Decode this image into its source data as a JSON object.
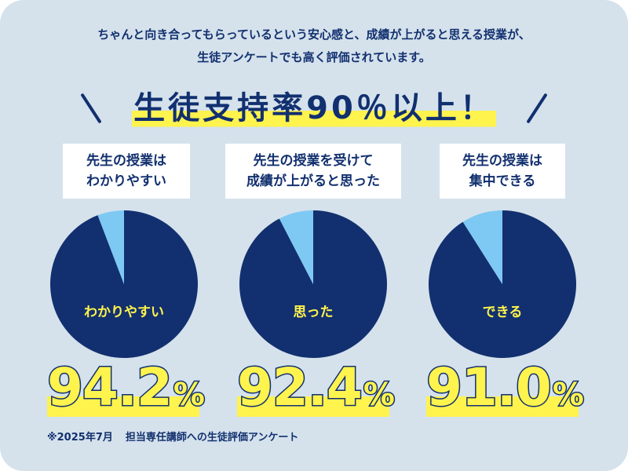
{
  "intro": {
    "line1": "ちゃんと向き合ってもらっているという安心感と、成績が上がると思える授業が、",
    "line2": "生徒アンケートでも高く評価されています。"
  },
  "headline": "生徒支持率90％以上！",
  "colors": {
    "background": "#d5e2ec",
    "navy": "#12306f",
    "light_blue": "#7ec9f3",
    "yellow": "#fff34d"
  },
  "chart_data": [
    {
      "type": "pie",
      "title": "先生の授業は\nわかりやすい",
      "slices": [
        {
          "label": "わかりやすい",
          "value": 94.2,
          "color": "#12306f"
        },
        {
          "label": "",
          "value": 5.8,
          "color": "#7ec9f3"
        }
      ],
      "center_label": "わかりやすい",
      "percent": "94.2",
      "unit": "%"
    },
    {
      "type": "pie",
      "title": "先生の授業を受けて\n成績が上がると思った",
      "slices": [
        {
          "label": "思った",
          "value": 92.4,
          "color": "#12306f"
        },
        {
          "label": "",
          "value": 7.6,
          "color": "#7ec9f3"
        }
      ],
      "center_label": "思った",
      "percent": "92.4",
      "unit": "%"
    },
    {
      "type": "pie",
      "title": "先生の授業は\n集中できる",
      "slices": [
        {
          "label": "できる",
          "value": 91.0,
          "color": "#12306f"
        },
        {
          "label": "",
          "value": 9.0,
          "color": "#7ec9f3"
        }
      ],
      "center_label": "できる",
      "percent": "91.0",
      "unit": "%"
    }
  ],
  "footnote": {
    "source": "※2025年7月",
    "survey": "担当専任講師への生徒評価アンケート"
  }
}
